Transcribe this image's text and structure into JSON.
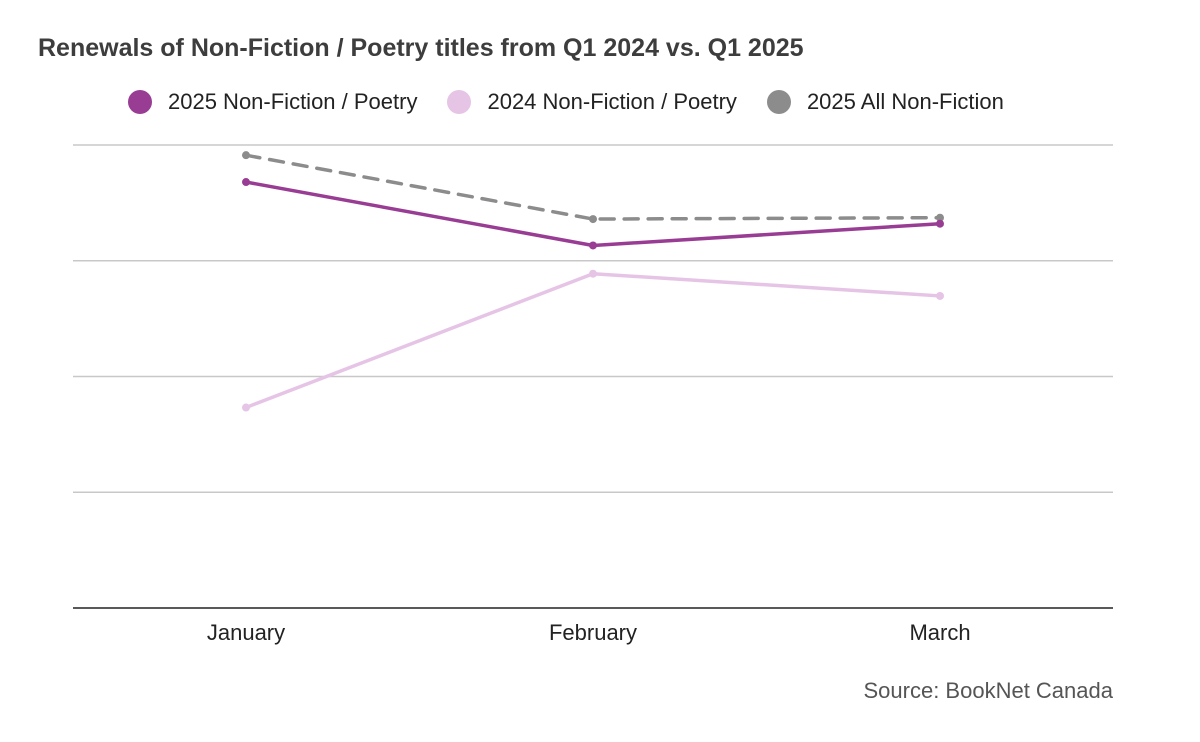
{
  "title": "Renewals of Non-Fiction / Poetry titles from Q1 2024 vs. Q1 2025",
  "source": "Source: BookNet Canada",
  "chart_data": {
    "type": "line",
    "categories": [
      "January",
      "February",
      "March"
    ],
    "ylim": [
      0,
      100
    ],
    "grid": true,
    "legend_position": "top",
    "series": [
      {
        "name": "2025 Non-Fiction / Poetry",
        "values": [
          92,
          78.3,
          83
        ],
        "color": "#993d94",
        "dashed": false
      },
      {
        "name": "2024 Non-Fiction / Poetry",
        "values": [
          43.3,
          72.2,
          67.4
        ],
        "color": "#e6c4e6",
        "dashed": false
      },
      {
        "name": "2025 All Non-Fiction",
        "values": [
          97.8,
          84,
          84.3
        ],
        "color": "#8c8c8c",
        "dashed": true
      }
    ]
  }
}
